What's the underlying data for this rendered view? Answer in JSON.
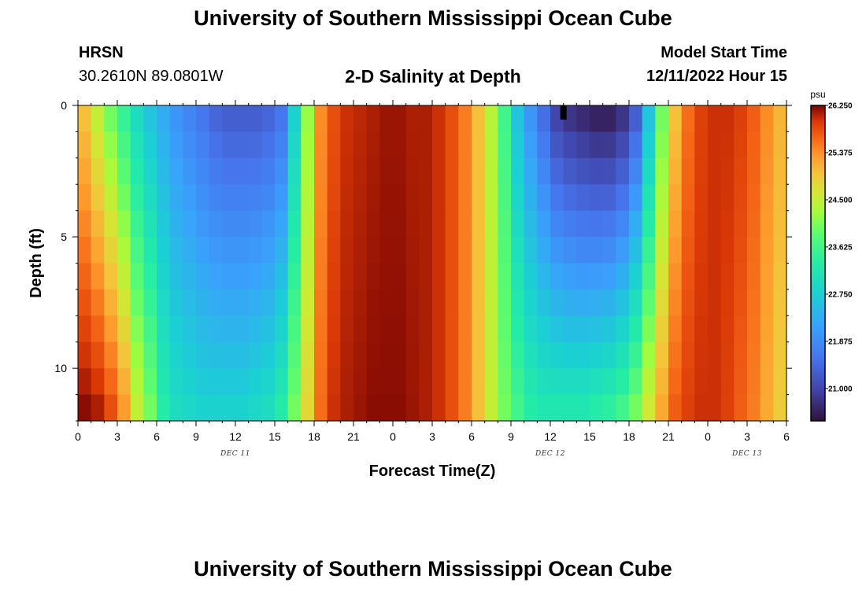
{
  "header": {
    "title": "University of Southern Mississippi Ocean Cube",
    "station_name": "HRSN",
    "station_coords": "30.2610N  89.0801W",
    "plot_title": "2-D Salinity at Depth",
    "start_label": "Model Start Time",
    "start_value": "12/11/2022 Hour 15"
  },
  "footer": {
    "title": "University of Southern Mississippi Ocean Cube"
  },
  "colors": {
    "low": "#30123b",
    "mid_blue": "#4145ab",
    "cyan": "#23c3c1",
    "green": "#a4fc3b",
    "yellow": "#e2dc38",
    "orange": "#f66b19",
    "high": "#7a0403"
  },
  "chart_data": {
    "type": "heatmap",
    "xlabel": "Forecast Time(Z)",
    "ylabel": "Depth (ft)",
    "x_tick_labels": [
      "0",
      "3",
      "6",
      "9",
      "12",
      "15",
      "18",
      "21",
      "0",
      "3",
      "6",
      "9",
      "12",
      "15",
      "18",
      "21",
      "0",
      "3",
      "6"
    ],
    "x_range_hours": [
      0,
      54
    ],
    "x_columns": 54,
    "y_ticks": [
      0,
      5,
      10
    ],
    "y_range_ft": [
      0,
      12
    ],
    "y_rows": 12,
    "reversed_y": true,
    "date_labels": [
      {
        "hour": 12,
        "text": "DEC 11"
      },
      {
        "hour": 36,
        "text": "DEC 12"
      },
      {
        "hour": 51,
        "text": "DEC 13"
      }
    ],
    "colorbar": {
      "unit": "psu",
      "min": 20.4,
      "max": 26.25,
      "tick_labels": [
        "26.250",
        "25.375",
        "24.500",
        "23.625",
        "22.750",
        "21.875",
        "21.000"
      ],
      "tick_values": [
        26.25,
        25.375,
        24.5,
        23.625,
        22.75,
        21.875,
        21.0
      ]
    },
    "surface_profile_psu": [
      25.0,
      24.5,
      24.0,
      23.5,
      23.0,
      22.6,
      22.3,
      22.0,
      21.8,
      21.6,
      21.4,
      21.3,
      21.3,
      21.3,
      21.4,
      21.6,
      22.8,
      24.2,
      25.4,
      25.8,
      26.0,
      26.05,
      26.1,
      26.15,
      26.15,
      26.1,
      26.1,
      26.0,
      25.8,
      25.5,
      25.0,
      24.4,
      23.6,
      22.6,
      22.0,
      21.5,
      21.0,
      20.8,
      20.7,
      20.6,
      20.6,
      20.8,
      21.3,
      22.6,
      24.0,
      25.0,
      25.6,
      25.9,
      26.0,
      26.0,
      25.9,
      25.7,
      25.4,
      25.1
    ],
    "bottom_profile_psu": [
      26.2,
      26.1,
      25.8,
      25.3,
      24.5,
      24.0,
      23.3,
      23.0,
      22.9,
      22.8,
      22.8,
      22.8,
      22.8,
      22.9,
      23.0,
      23.3,
      24.0,
      24.8,
      25.6,
      26.0,
      26.1,
      26.15,
      26.2,
      26.2,
      26.2,
      26.15,
      26.1,
      26.0,
      25.8,
      25.5,
      25.0,
      24.5,
      24.0,
      23.6,
      23.3,
      23.2,
      23.2,
      23.2,
      23.2,
      23.3,
      23.4,
      23.6,
      24.0,
      24.6,
      25.2,
      25.7,
      25.9,
      26.0,
      26.0,
      25.9,
      25.7,
      25.5,
      25.2,
      24.9
    ],
    "surface_marker": {
      "hour": 37,
      "depth_ft": 0.3
    }
  }
}
